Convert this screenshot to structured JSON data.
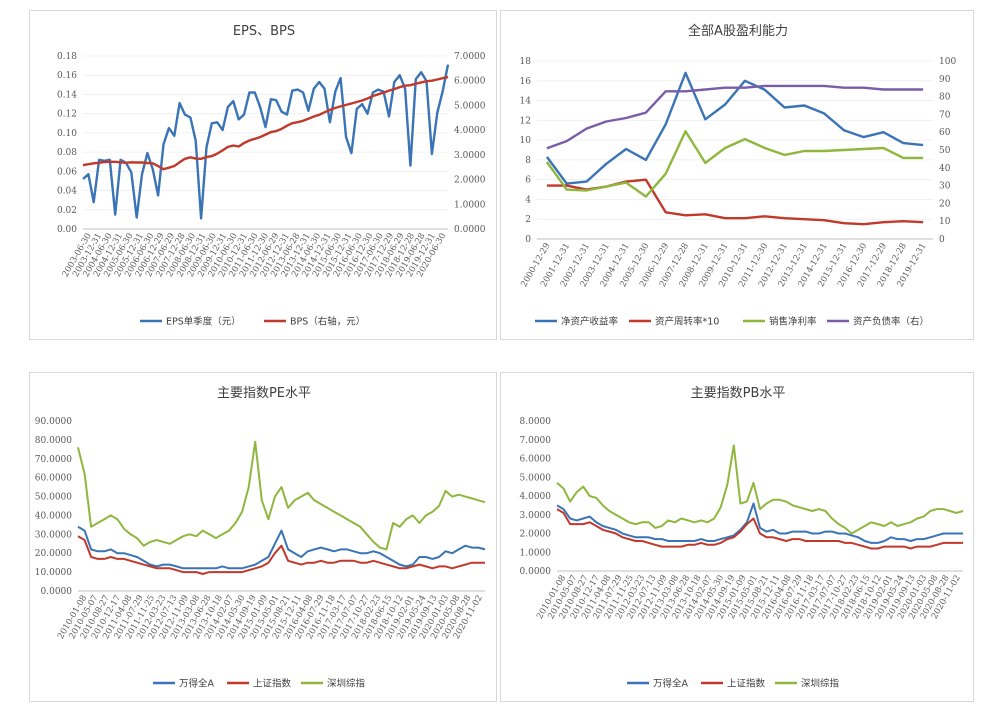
{
  "chart_data": [
    {
      "id": "eps_bps",
      "type": "line",
      "title": "EPS、BPS",
      "y_left": {
        "min": 0,
        "max": 0.18,
        "step": 0.02,
        "ticks": [
          "0.00",
          "0.02",
          "0.04",
          "0.06",
          "0.08",
          "0.10",
          "0.12",
          "0.14",
          "0.16",
          "0.18"
        ]
      },
      "y_right": {
        "min": 0,
        "max": 7,
        "step": 1,
        "ticks": [
          "0.0000",
          "1.0000",
          "2.0000",
          "3.0000",
          "4.0000",
          "5.0000",
          "6.0000",
          "7.0000"
        ]
      },
      "x_labels": [
        "2003-06-30",
        "2003-12-31",
        "2004-06-30",
        "2004-12-31",
        "2005-06-30",
        "2005-12-31",
        "2006-06-30",
        "2006-12-29",
        "2007-06-29",
        "2007-12-28",
        "2008-06-30",
        "2008-12-31",
        "2009-06-30",
        "2009-12-31",
        "2010-06-30",
        "2010-12-31",
        "2011-06-30",
        "2011-12-30",
        "2012-06-29",
        "2012-12-31",
        "2013-06-28",
        "2013-12-31",
        "2014-06-30",
        "2014-12-31",
        "2015-06-30",
        "2015-12-31",
        "2016-06-30",
        "2016-12-30",
        "2017-06-30",
        "2017-12-29",
        "2018-06-29",
        "2018-12-28",
        "2019-06-28",
        "2019-12-31",
        "2020-06-30"
      ],
      "series": [
        {
          "name": "EPS单季度（元）",
          "axis": "left",
          "color": "#3a74b6",
          "values": [
            0.052,
            0.057,
            0.028,
            0.072,
            0.071,
            0.072,
            0.015,
            0.072,
            0.069,
            0.059,
            0.012,
            0.057,
            0.079,
            0.062,
            0.035,
            0.088,
            0.105,
            0.097,
            0.131,
            0.119,
            0.116,
            0.092,
            0.011,
            0.085,
            0.11,
            0.111,
            0.103,
            0.127,
            0.133,
            0.114,
            0.119,
            0.142,
            0.142,
            0.127,
            0.106,
            0.135,
            0.134,
            0.122,
            0.119,
            0.144,
            0.145,
            0.142,
            0.123,
            0.146,
            0.153,
            0.146,
            0.111,
            0.143,
            0.157,
            0.096,
            0.079,
            0.125,
            0.13,
            0.12,
            0.142,
            0.145,
            0.143,
            0.117,
            0.153,
            0.16,
            0.146,
            0.066,
            0.156,
            0.163,
            0.154,
            0.078,
            0.121,
            0.143,
            0.171
          ]
        },
        {
          "name": "BPS（右轴，元）",
          "axis": "right",
          "color": "#c0392b",
          "values": [
            2.58,
            2.62,
            2.66,
            2.68,
            2.71,
            2.72,
            2.72,
            2.7,
            2.68,
            2.7,
            2.69,
            2.69,
            2.67,
            2.66,
            2.55,
            2.42,
            2.48,
            2.55,
            2.7,
            2.84,
            2.9,
            2.85,
            2.84,
            2.91,
            2.95,
            3.05,
            3.18,
            3.32,
            3.38,
            3.34,
            3.48,
            3.58,
            3.65,
            3.72,
            3.82,
            3.92,
            3.96,
            4.05,
            4.18,
            4.28,
            4.32,
            4.38,
            4.46,
            4.55,
            4.62,
            4.72,
            4.82,
            4.9,
            4.96,
            5.02,
            5.08,
            5.14,
            5.2,
            5.28,
            5.38,
            5.45,
            5.52,
            5.6,
            5.66,
            5.74,
            5.8,
            5.82,
            5.88,
            5.93,
            5.98,
            6.0,
            6.05,
            6.1,
            6.15
          ]
        }
      ],
      "legend": "bottom"
    },
    {
      "id": "profitability",
      "type": "line",
      "title": "全部A股盈利能力",
      "y_left": {
        "min": 0,
        "max": 18,
        "step": 2,
        "ticks": [
          "0",
          "2",
          "4",
          "6",
          "8",
          "10",
          "12",
          "14",
          "16",
          "18"
        ]
      },
      "y_right": {
        "min": 0,
        "max": 100,
        "step": 10,
        "ticks": [
          "0",
          "10",
          "20",
          "30",
          "40",
          "50",
          "60",
          "70",
          "80",
          "90",
          "100"
        ]
      },
      "x_labels": [
        "2000-12-29",
        "2001-12-31",
        "2002-12-31",
        "2003-12-31",
        "2004-12-31",
        "2005-12-30",
        "2006-12-29",
        "2007-12-28",
        "2008-12-31",
        "2009-12-31",
        "2010-12-31",
        "2011-12-30",
        "2012-12-31",
        "2013-12-31",
        "2014-12-31",
        "2015-12-31",
        "2016-12-30",
        "2017-12-29",
        "2018-12-28",
        "2019-12-31"
      ],
      "series": [
        {
          "name": "净资产收益率",
          "axis": "left",
          "color": "#3a74b6",
          "values": [
            8.3,
            5.6,
            5.8,
            7.6,
            9.1,
            8.0,
            11.6,
            16.8,
            12.1,
            13.6,
            16.0,
            15.1,
            13.3,
            13.5,
            12.7,
            11.0,
            10.3,
            10.8,
            9.7,
            9.5
          ]
        },
        {
          "name": "资产周转率*10",
          "axis": "left",
          "color": "#c0392b",
          "values": [
            5.4,
            5.4,
            5.0,
            5.3,
            5.8,
            6.0,
            2.7,
            2.4,
            2.5,
            2.1,
            2.1,
            2.3,
            2.1,
            2.0,
            1.9,
            1.6,
            1.5,
            1.7,
            1.8,
            1.7
          ]
        },
        {
          "name": "销售净利率",
          "axis": "left",
          "color": "#8fb73e",
          "values": [
            7.8,
            5.0,
            4.9,
            5.3,
            5.7,
            4.3,
            6.6,
            10.9,
            7.7,
            9.2,
            10.1,
            9.2,
            8.5,
            8.9,
            8.9,
            9.0,
            9.1,
            9.2,
            8.2,
            8.2
          ]
        },
        {
          "name": "资产负债率（右）",
          "axis": "right",
          "color": "#7a5ca8",
          "values": [
            51,
            55,
            62,
            66,
            68,
            71,
            83,
            83,
            84,
            85,
            85,
            86,
            86,
            86,
            86,
            85,
            85,
            84,
            84,
            84
          ]
        }
      ],
      "legend": "bottom"
    },
    {
      "id": "pe",
      "type": "line",
      "title": "主要指数PE水平",
      "y_left": {
        "min": 0,
        "max": 90,
        "step": 10,
        "ticks": [
          "0.0000",
          "10.0000",
          "20.0000",
          "30.0000",
          "40.0000",
          "50.0000",
          "60.0000",
          "70.0000",
          "80.0000",
          "90.0000"
        ]
      },
      "x_labels": [
        "2010-01-08",
        "2010-05-07",
        "2010-08-27",
        "2010-12-17",
        "2011-04-08",
        "2011-07-29",
        "2011-11-25",
        "2012-03-23",
        "2012-07-13",
        "2012-11-09",
        "2013-03-08",
        "2013-06-28",
        "2013-10-18",
        "2014-02-07",
        "2014-05-30",
        "2014-09-19",
        "2015-01-09",
        "2015-05-01",
        "2015-08-21",
        "2015-12-11",
        "2016-04-08",
        "2016-07-29",
        "2016-11-18",
        "2017-03-17",
        "2017-07-07",
        "2017-10-27",
        "2018-02-23",
        "2018-06-15",
        "2018-10-12",
        "2019-02-01",
        "2019-05-24",
        "2019-09-13",
        "2020-01-03",
        "2020-05-08",
        "2020-08-28",
        "2020-11-02"
      ],
      "series": [
        {
          "name": "万得全A",
          "color": "#3a74b6",
          "values": [
            34,
            32,
            22,
            21,
            21,
            22,
            20,
            20,
            19,
            18,
            16,
            14,
            13,
            14,
            14,
            13,
            12,
            12,
            12,
            12,
            12,
            12,
            13,
            12,
            12,
            12,
            13,
            14,
            16,
            18,
            25,
            32,
            22,
            20,
            18,
            21,
            22,
            23,
            22,
            21,
            22,
            22,
            21,
            20,
            20,
            21,
            20,
            18,
            16,
            14,
            13,
            14,
            18,
            18,
            17,
            18,
            21,
            20,
            22,
            24,
            23,
            23,
            22
          ]
        },
        {
          "name": "上证指数",
          "color": "#c0392b",
          "values": [
            29,
            27,
            18,
            17,
            17,
            18,
            17,
            17,
            16,
            15,
            14,
            13,
            12,
            12,
            12,
            11,
            10,
            10,
            10,
            9,
            10,
            10,
            10,
            10,
            10,
            10,
            11,
            12,
            13,
            15,
            20,
            24,
            16,
            15,
            14,
            15,
            15,
            16,
            15,
            15,
            16,
            16,
            16,
            15,
            15,
            16,
            15,
            14,
            13,
            12,
            12,
            13,
            14,
            13,
            12,
            13,
            13,
            12,
            13,
            14,
            15,
            15,
            15
          ]
        },
        {
          "name": "深圳综指",
          "color": "#8fb73e",
          "values": [
            76,
            62,
            34,
            36,
            38,
            40,
            38,
            33,
            30,
            28,
            24,
            26,
            27,
            26,
            25,
            27,
            29,
            30,
            29,
            32,
            30,
            28,
            30,
            32,
            36,
            42,
            55,
            79,
            48,
            38,
            50,
            55,
            44,
            48,
            50,
            52,
            48,
            46,
            44,
            42,
            40,
            38,
            36,
            34,
            30,
            26,
            23,
            22,
            36,
            34,
            38,
            40,
            36,
            40,
            42,
            45,
            53,
            50,
            51,
            50,
            49,
            48,
            47
          ]
        }
      ],
      "legend": "bottom"
    },
    {
      "id": "pb",
      "type": "line",
      "title": "主要指数PB水平",
      "y_left": {
        "min": 0,
        "max": 8,
        "step": 1,
        "ticks": [
          "0.0000",
          "1.0000",
          "2.0000",
          "3.0000",
          "4.0000",
          "5.0000",
          "6.0000",
          "7.0000",
          "8.0000"
        ]
      },
      "x_labels": [
        "2010-01-08",
        "2010-05-07",
        "2010-08-27",
        "2010-12-17",
        "2011-04-08",
        "2011-07-29",
        "2011-11-25",
        "2012-03-23",
        "2012-07-13",
        "2012-11-09",
        "2013-03-08",
        "2013-06-28",
        "2013-10-18",
        "2014-02-07",
        "2014-05-30",
        "2014-09-19",
        "2015-01-09",
        "2015-05-01",
        "2015-08-21",
        "2015-12-11",
        "2016-04-08",
        "2016-07-29",
        "2016-11-18",
        "2017-03-17",
        "2017-07-07",
        "2017-10-27",
        "2018-02-23",
        "2018-06-15",
        "2018-10-12",
        "2019-02-01",
        "2019-05-24",
        "2019-09-13",
        "2020-01-03",
        "2020-05-08",
        "2020-08-28",
        "2020-11-02"
      ],
      "series": [
        {
          "name": "万得全A",
          "color": "#3a74b6",
          "values": [
            3.5,
            3.3,
            2.8,
            2.7,
            2.8,
            2.9,
            2.6,
            2.4,
            2.3,
            2.2,
            2.0,
            1.9,
            1.8,
            1.8,
            1.8,
            1.7,
            1.7,
            1.6,
            1.6,
            1.6,
            1.6,
            1.6,
            1.7,
            1.6,
            1.6,
            1.7,
            1.8,
            1.9,
            2.2,
            2.6,
            3.6,
            2.3,
            2.1,
            2.2,
            2.0,
            2.0,
            2.1,
            2.1,
            2.1,
            2.0,
            2.0,
            2.1,
            2.1,
            2.0,
            2.0,
            1.9,
            1.8,
            1.6,
            1.5,
            1.5,
            1.6,
            1.8,
            1.7,
            1.7,
            1.6,
            1.7,
            1.7,
            1.8,
            1.9,
            2.0,
            2.0,
            2.0,
            2.0
          ]
        },
        {
          "name": "上证指数",
          "color": "#c0392b",
          "values": [
            3.3,
            3.1,
            2.5,
            2.5,
            2.5,
            2.6,
            2.4,
            2.2,
            2.1,
            2.0,
            1.8,
            1.7,
            1.6,
            1.6,
            1.5,
            1.4,
            1.3,
            1.3,
            1.3,
            1.3,
            1.4,
            1.4,
            1.5,
            1.4,
            1.4,
            1.5,
            1.7,
            1.8,
            2.1,
            2.5,
            2.8,
            2.0,
            1.8,
            1.8,
            1.7,
            1.6,
            1.7,
            1.7,
            1.6,
            1.6,
            1.6,
            1.6,
            1.6,
            1.6,
            1.5,
            1.5,
            1.4,
            1.3,
            1.2,
            1.2,
            1.3,
            1.3,
            1.3,
            1.3,
            1.2,
            1.3,
            1.3,
            1.3,
            1.4,
            1.5,
            1.5,
            1.5,
            1.5
          ]
        },
        {
          "name": "深圳综指",
          "color": "#8fb73e",
          "values": [
            4.7,
            4.4,
            3.7,
            4.2,
            4.5,
            4.0,
            3.9,
            3.5,
            3.2,
            3.0,
            2.8,
            2.6,
            2.5,
            2.6,
            2.6,
            2.3,
            2.4,
            2.7,
            2.6,
            2.8,
            2.7,
            2.6,
            2.7,
            2.6,
            2.8,
            3.4,
            4.6,
            6.7,
            3.6,
            3.7,
            4.7,
            3.3,
            3.6,
            3.8,
            3.8,
            3.7,
            3.5,
            3.4,
            3.3,
            3.2,
            3.3,
            3.2,
            2.8,
            2.5,
            2.3,
            2.0,
            2.2,
            2.4,
            2.6,
            2.5,
            2.4,
            2.6,
            2.4,
            2.5,
            2.6,
            2.8,
            2.9,
            3.2,
            3.3,
            3.3,
            3.2,
            3.1,
            3.2
          ]
        }
      ],
      "legend": "bottom"
    }
  ]
}
